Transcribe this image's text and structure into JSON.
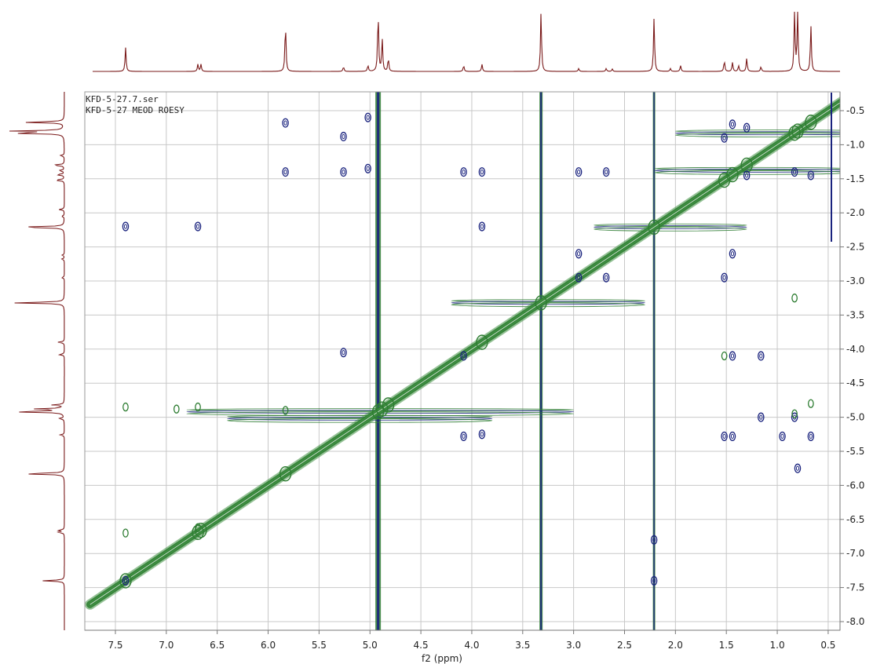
{
  "chart_data": {
    "type": "contour-2d-nmr",
    "legend_lines": [
      "KFD-5-27.7.ser",
      "KFD-5-27 MEOD ROESY"
    ],
    "x_axis": {
      "label": "f2 (ppm)",
      "range": [
        7.75,
        0.1
      ],
      "ticks": [
        "7.5",
        "7.0",
        "6.5",
        "6.0",
        "5.5",
        "5.0",
        "4.5",
        "4.0",
        "3.5",
        "3.0",
        "2.5",
        "2.0",
        "1.5",
        "1.0",
        "0.5"
      ]
    },
    "y_axis": {
      "label": "f1 (ppm)",
      "range": [
        0.25,
        8.2
      ],
      "ticks": [
        "-0.5",
        "-1.0",
        "-1.5",
        "-2.0",
        "-2.5",
        "-3.0",
        "-3.5",
        "-4.0",
        "-4.5",
        "-5.0",
        "-5.5",
        "-6.0",
        "-6.5",
        "-7.0",
        "-7.5",
        "-8.0"
      ]
    },
    "grid": true,
    "colors": {
      "positive": "#2e7d32",
      "negative": "#1a237e",
      "projection": "#7a1a1a",
      "grid": "#c8c8c8"
    },
    "projection_peaks": [
      {
        "ppm": 7.4,
        "h": 0.4
      },
      {
        "ppm": 6.69,
        "h": 0.12
      },
      {
        "ppm": 6.66,
        "h": 0.12
      },
      {
        "ppm": 5.83,
        "h": 0.82
      },
      {
        "ppm": 5.26,
        "h": 0.08
      },
      {
        "ppm": 5.02,
        "h": 0.1
      },
      {
        "ppm": 4.92,
        "h": 1.0
      },
      {
        "ppm": 4.88,
        "h": 0.55
      },
      {
        "ppm": 4.82,
        "h": 0.22
      },
      {
        "ppm": 4.08,
        "h": 0.1
      },
      {
        "ppm": 3.9,
        "h": 0.12
      },
      {
        "ppm": 3.32,
        "h": 1.0
      },
      {
        "ppm": 2.95,
        "h": 0.05
      },
      {
        "ppm": 2.68,
        "h": 0.05
      },
      {
        "ppm": 2.62,
        "h": 0.04
      },
      {
        "ppm": 2.21,
        "h": 0.9
      },
      {
        "ppm": 2.05,
        "h": 0.05
      },
      {
        "ppm": 1.95,
        "h": 0.1
      },
      {
        "ppm": 1.52,
        "h": 0.18
      },
      {
        "ppm": 1.44,
        "h": 0.15
      },
      {
        "ppm": 1.38,
        "h": 0.1
      },
      {
        "ppm": 1.3,
        "h": 0.22
      },
      {
        "ppm": 1.16,
        "h": 0.08
      },
      {
        "ppm": 0.83,
        "h": 1.0
      },
      {
        "ppm": 0.8,
        "h": 1.0
      },
      {
        "ppm": 0.67,
        "h": 0.78
      }
    ],
    "cross_peaks_negative": [
      {
        "x": 7.4,
        "y": 2.2
      },
      {
        "x": 6.69,
        "y": 2.2
      },
      {
        "x": 5.83,
        "y": 0.68
      },
      {
        "x": 5.83,
        "y": 1.4
      },
      {
        "x": 5.26,
        "y": 0.88
      },
      {
        "x": 5.26,
        "y": 1.4
      },
      {
        "x": 5.26,
        "y": 4.05
      },
      {
        "x": 5.02,
        "y": 0.6
      },
      {
        "x": 5.02,
        "y": 1.35
      },
      {
        "x": 4.08,
        "y": 1.4
      },
      {
        "x": 4.08,
        "y": 4.1
      },
      {
        "x": 4.08,
        "y": 5.28
      },
      {
        "x": 3.9,
        "y": 1.4
      },
      {
        "x": 3.9,
        "y": 2.2
      },
      {
        "x": 3.9,
        "y": 5.25
      },
      {
        "x": 2.95,
        "y": 1.4
      },
      {
        "x": 2.95,
        "y": 2.6
      },
      {
        "x": 2.95,
        "y": 2.95
      },
      {
        "x": 2.68,
        "y": 1.4
      },
      {
        "x": 2.68,
        "y": 2.95
      },
      {
        "x": 1.52,
        "y": 0.9
      },
      {
        "x": 1.52,
        "y": 2.95
      },
      {
        "x": 1.52,
        "y": 5.28
      },
      {
        "x": 1.44,
        "y": 0.7
      },
      {
        "x": 1.44,
        "y": 2.6
      },
      {
        "x": 1.44,
        "y": 4.1
      },
      {
        "x": 1.44,
        "y": 5.28
      },
      {
        "x": 1.3,
        "y": 0.75
      },
      {
        "x": 1.3,
        "y": 1.45
      },
      {
        "x": 1.16,
        "y": 4.1
      },
      {
        "x": 1.16,
        "y": 5.0
      },
      {
        "x": 0.95,
        "y": 5.28
      },
      {
        "x": 0.83,
        "y": 1.4
      },
      {
        "x": 0.83,
        "y": 5.0
      },
      {
        "x": 0.8,
        "y": 5.75
      },
      {
        "x": 0.67,
        "y": 1.45
      },
      {
        "x": 0.67,
        "y": 5.28
      },
      {
        "x": 7.4,
        "y": 7.4
      },
      {
        "x": 2.21,
        "y": 7.4
      },
      {
        "x": 2.21,
        "y": 6.8
      }
    ],
    "cross_peaks_positive": [
      {
        "x": 7.4,
        "y": 4.85
      },
      {
        "x": 6.69,
        "y": 4.85
      },
      {
        "x": 6.9,
        "y": 4.88
      },
      {
        "x": 5.83,
        "y": 4.9
      },
      {
        "x": 7.4,
        "y": 6.7
      },
      {
        "x": 6.69,
        "y": 6.62
      },
      {
        "x": 0.83,
        "y": 3.25
      },
      {
        "x": 0.67,
        "y": 4.8
      },
      {
        "x": 0.83,
        "y": 4.95
      },
      {
        "x": 1.52,
        "y": 4.1
      }
    ],
    "diagonal_ridges": [
      {
        "ppm": 0.83,
        "dir": "h",
        "from": 0.1,
        "to": 2.0
      },
      {
        "ppm": 1.38,
        "dir": "h",
        "from": 0.3,
        "to": 2.2
      },
      {
        "ppm": 2.21,
        "dir": "h",
        "from": 1.3,
        "to": 2.8
      },
      {
        "ppm": 3.32,
        "dir": "h",
        "from": 2.3,
        "to": 4.2
      },
      {
        "ppm": 4.92,
        "dir": "h",
        "from": 3.0,
        "to": 6.8
      },
      {
        "ppm": 5.02,
        "dir": "h",
        "from": 3.8,
        "to": 6.4
      }
    ],
    "vertical_streaks": [
      {
        "ppm": 4.92,
        "width": 7,
        "neg_width": 3
      },
      {
        "ppm": 3.32,
        "width": 4,
        "neg_width": 2
      },
      {
        "ppm": 2.21,
        "width": 3,
        "neg_width": 1.5
      }
    ]
  }
}
